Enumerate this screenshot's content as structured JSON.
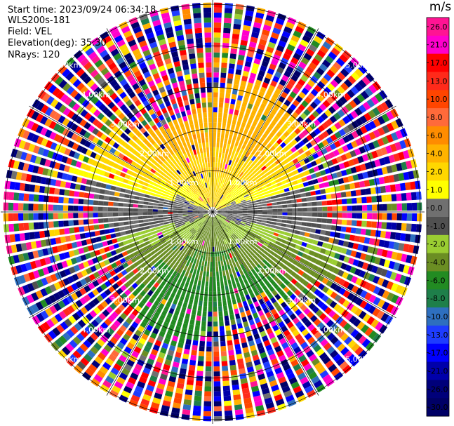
{
  "header": {
    "start_time": "Start time: 2023/09/24 06:34:18",
    "site": "WLS200s-181",
    "field": "Field: VEL",
    "elevation": "Elevation(deg): 35.30",
    "nrays": "NRays: 120"
  },
  "colorbar": {
    "unit": "m/s",
    "ticks": [
      "26.0",
      "21.0",
      "17.0",
      "13.0",
      "10.0",
      "8.0",
      "6.0",
      "4.0",
      "2.0",
      "1.0",
      "0.0",
      "-1.0",
      "-2.0",
      "-4.0",
      "-6.0",
      "-8.0",
      "-10.0",
      "-13.0",
      "-17.0",
      "-21.0",
      "-26.0",
      "-30.0"
    ],
    "colors": [
      "#ff1493",
      "#ff00cc",
      "#ff0000",
      "#ff2a1a",
      "#ff4500",
      "#ff6a3a",
      "#ff8c00",
      "#ffb300",
      "#ffd700",
      "#ffff00",
      "#707070",
      "#505050",
      "#9acd32",
      "#6b8e23",
      "#228b22",
      "#1e7f4a",
      "#2e6fbf",
      "#1e3cff",
      "#0000ff",
      "#0000aa",
      "#00007a",
      "#000066"
    ]
  },
  "chart_data": {
    "type": "heatmap",
    "subtype": "radar PPI",
    "field": "VEL",
    "unit": "m/s",
    "nrays": 120,
    "elevation_deg": 35.3,
    "range_ring_labels": [
      "1.00km",
      "2.00km",
      "3.00km",
      "4.00km",
      "5.00km"
    ],
    "range_rings_km": [
      1,
      2,
      3,
      4,
      5
    ],
    "azimuth_spokes_deg": [
      0,
      30,
      60,
      90,
      120,
      150,
      180,
      210,
      240,
      270,
      300,
      330
    ],
    "colorbar_range": [
      -30.0,
      26.0
    ],
    "pattern": "Northern half near the radar shows positive velocities (yellow 1–2 m/s, orange ~4–6 m/s around 2 km north); southern half shows negative velocities (light green -2, olive -4, dark green ~-6 m/s toward the south); grey near-zero band along east-west; beyond ~3 km range the field is dominated by noisy multi-colored values."
  }
}
